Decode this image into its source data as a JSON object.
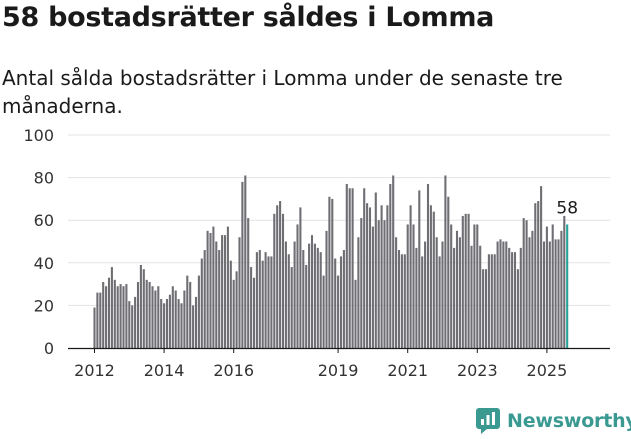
{
  "header": {
    "title": "58 bostadsrätter såldes i Lomma",
    "subtitle": "Antal sålda bostadsrätter i Lomma under de senaste tre månaderna."
  },
  "brand": {
    "name": "Newsworthy",
    "icon": "newsworthy-logo-icon",
    "color": "#3a9a92"
  },
  "colors": {
    "bar": "#6f6e73",
    "highlight": "#27a198",
    "grid": "#e3e3e3",
    "axis": "#1a1a1a"
  },
  "chart_data": {
    "type": "bar",
    "title": "58 bostadsrätter såldes i Lomma",
    "subtitle": "Antal sålda bostadsrätter i Lomma under de senaste tre månaderna.",
    "xlabel": "",
    "ylabel": "",
    "ylim": [
      0,
      100
    ],
    "yticks": [
      0,
      20,
      40,
      60,
      80,
      100
    ],
    "xticks": [
      "2012",
      "2014",
      "2016",
      "2019",
      "2021",
      "2023",
      "2025"
    ],
    "grid": true,
    "start": "2012-01",
    "interval": "month",
    "values": [
      19,
      26,
      26,
      31,
      29,
      33,
      38,
      32,
      29,
      30,
      29,
      30,
      22,
      20,
      24,
      31,
      39,
      37,
      32,
      31,
      29,
      27,
      29,
      23,
      21,
      23,
      25,
      29,
      27,
      23,
      21,
      27,
      34,
      31,
      20,
      24,
      34,
      42,
      46,
      55,
      54,
      57,
      50,
      46,
      53,
      53,
      57,
      41,
      32,
      36,
      52,
      78,
      81,
      61,
      38,
      33,
      45,
      46,
      41,
      45,
      43,
      43,
      63,
      67,
      69,
      63,
      50,
      44,
      38,
      50,
      58,
      66,
      46,
      39,
      49,
      53,
      49,
      47,
      45,
      34,
      55,
      71,
      70,
      42,
      34,
      43,
      46,
      77,
      75,
      75,
      32,
      52,
      61,
      75,
      68,
      66,
      57,
      73,
      60,
      67,
      60,
      67,
      77,
      81,
      52,
      46,
      44,
      44,
      58,
      67,
      58,
      47,
      74,
      43,
      50,
      77,
      67,
      64,
      52,
      43,
      50,
      81,
      71,
      58,
      47,
      55,
      52,
      62,
      63,
      63,
      48,
      58,
      58,
      48,
      37,
      37,
      44,
      44,
      44,
      50,
      51,
      50,
      50,
      47,
      45,
      45,
      37,
      47,
      61,
      60,
      52,
      55,
      68,
      69,
      76,
      50,
      57,
      50,
      58,
      51,
      51,
      55,
      62,
      58
    ],
    "highlight_last": true,
    "annotation": "58"
  }
}
